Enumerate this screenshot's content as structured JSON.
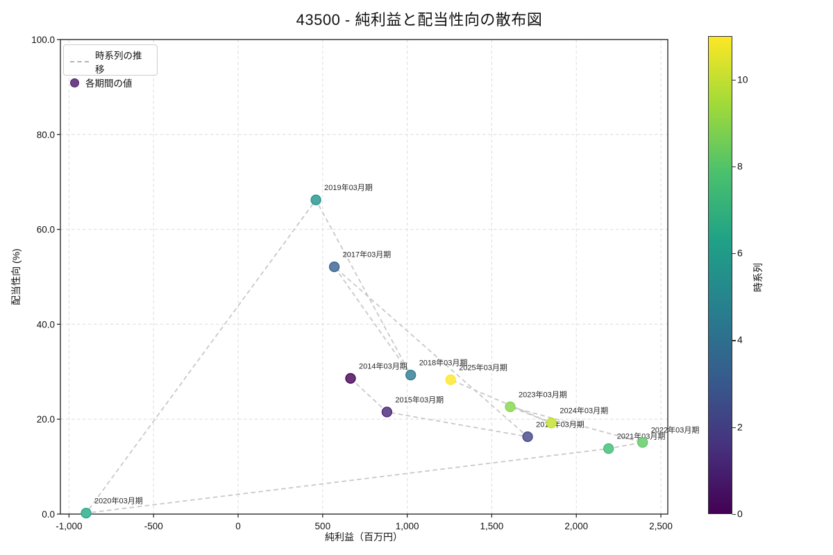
{
  "chart_data": {
    "type": "scatter",
    "title": "43500 - 純利益と配当性向の散布図",
    "xlabel": "純利益（百万円）",
    "ylabel": "配当性向 (%)",
    "xlim": [
      -1051,
      2541
    ],
    "ylim": [
      0,
      100
    ],
    "x_ticks": [
      -1000,
      -500,
      0,
      500,
      1000,
      1500,
      2000,
      2500
    ],
    "x_tick_labels": [
      "-1,000",
      "-500",
      "0",
      "500",
      "1,000",
      "1,500",
      "2,000",
      "2,500"
    ],
    "y_ticks": [
      0,
      20,
      40,
      60,
      80,
      100
    ],
    "y_tick_labels": [
      "0.0",
      "20.0",
      "40.0",
      "60.0",
      "80.0",
      "100.0"
    ],
    "grid": true,
    "grid_color": "#dcdcdc",
    "trajectory_color": "#c8c8c8",
    "legend": {
      "position": "upper-left",
      "items": [
        {
          "label": "時系列の推移",
          "type": "dashed-line",
          "color": "#b3b3b3"
        },
        {
          "label": "各期間の値",
          "type": "dot",
          "fill": "#6f4287",
          "stroke": "#4b1a63"
        }
      ]
    },
    "colorbar": {
      "label": "時系列",
      "min": 0,
      "max": 11,
      "ticks": [
        0,
        2,
        4,
        6,
        8,
        10
      ],
      "colormap": "viridis",
      "gradient_stops": [
        "#440154",
        "#46327e",
        "#365c8d",
        "#277f8e",
        "#1fa187",
        "#4ac16d",
        "#a0da39",
        "#fde725"
      ]
    },
    "points": [
      {
        "label": "2014年03月期",
        "x": 665,
        "y": 28.6,
        "seq": 0,
        "fill": "#693476",
        "stroke": "#440154"
      },
      {
        "label": "2015年03月期",
        "x": 880,
        "y": 21.5,
        "seq": 1,
        "fill": "#6d5091",
        "stroke": "#482475"
      },
      {
        "label": "2016年03月期",
        "x": 1712,
        "y": 16.3,
        "seq": 2,
        "fill": "#67699f",
        "stroke": "#414487"
      },
      {
        "label": "2017年03月期",
        "x": 569,
        "y": 52.1,
        "seq": 3,
        "fill": "#5d80a4",
        "stroke": "#35608d"
      },
      {
        "label": "2018年03月期",
        "x": 1021,
        "y": 29.3,
        "seq": 4,
        "fill": "#5593a5",
        "stroke": "#2a788e"
      },
      {
        "label": "2019年03月期",
        "x": 460,
        "y": 66.2,
        "seq": 5,
        "fill": "#4da7a3",
        "stroke": "#21918c"
      },
      {
        "label": "2020年03月期",
        "x": -899,
        "y": 0.2,
        "seq": 6,
        "fill": "#4eb99d",
        "stroke": "#22a884"
      },
      {
        "label": "2021年03月期",
        "x": 2191,
        "y": 13.8,
        "seq": 7,
        "fill": "#62c991",
        "stroke": "#3bbb75"
      },
      {
        "label": "2022年03月期",
        "x": 2392,
        "y": 15.1,
        "seq": 8,
        "fill": "#7dd381",
        "stroke": "#5dc863"
      },
      {
        "label": "2023年03月期",
        "x": 1609,
        "y": 22.6,
        "seq": 9,
        "fill": "#9ddd6f",
        "stroke": "#84d44b"
      },
      {
        "label": "2024年03月期",
        "x": 1853,
        "y": 19.2,
        "seq": 10,
        "fill": "#cde651",
        "stroke": "#bddf26"
      },
      {
        "label": "2025年03月期",
        "x": 1257,
        "y": 28.3,
        "seq": 11,
        "fill": "#fdec51",
        "stroke": "#fde725"
      }
    ]
  }
}
